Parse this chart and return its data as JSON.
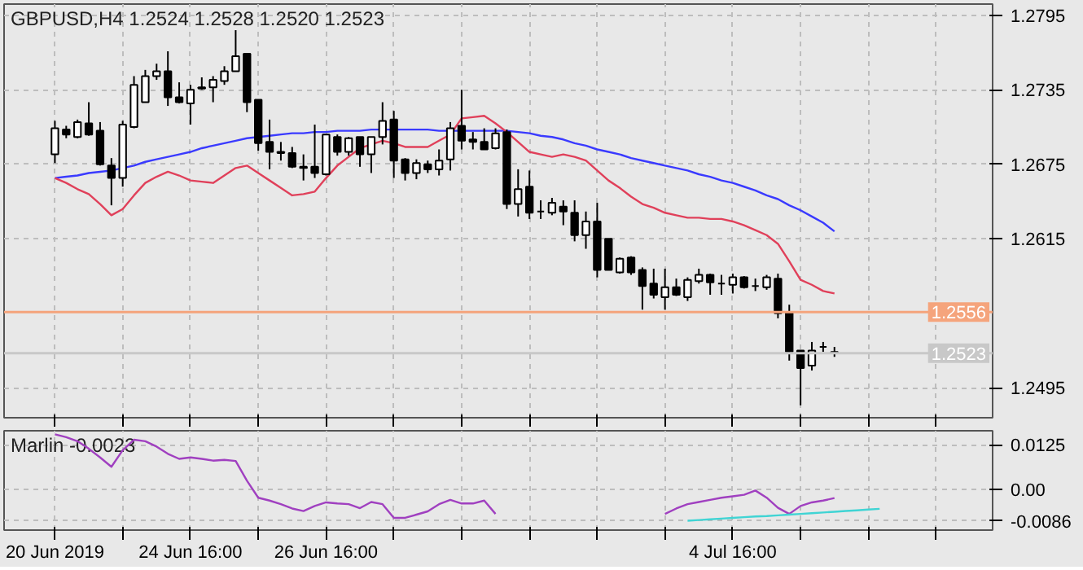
{
  "chart_data": [
    {
      "type": "candlestick",
      "title": "GBPUSD,H4  1.2524 1.2528 1.2520 1.2523",
      "categories": [
        null,
        null,
        null,
        null,
        null,
        null,
        null,
        null,
        null,
        null,
        null,
        null,
        null,
        null,
        null,
        null,
        null,
        null,
        null,
        null,
        null,
        null,
        null,
        null,
        null,
        null,
        null,
        null,
        null,
        null,
        null,
        null,
        null,
        null,
        null,
        null,
        null,
        null,
        null,
        null,
        null,
        null,
        null,
        null,
        null,
        null,
        null,
        null,
        null,
        null,
        null,
        null,
        null,
        null,
        null,
        null,
        null,
        null,
        null,
        null,
        null,
        null,
        null,
        null,
        null,
        null,
        null,
        null,
        null,
        null,
        null,
        null,
        null,
        null,
        null,
        null,
        null,
        null,
        null,
        null,
        null,
        null,
        null,
        null
      ],
      "ohlc": [
        [
          1.2683,
          1.271,
          1.2676,
          1.2704
        ],
        [
          1.2703,
          1.2706,
          1.2696,
          1.2699
        ],
        [
          1.2697,
          1.2711,
          1.2696,
          1.2709
        ],
        [
          1.2708,
          1.2725,
          1.2698,
          1.2699
        ],
        [
          1.2702,
          1.2709,
          1.2674,
          1.2675
        ],
        [
          1.2674,
          1.268,
          1.2642,
          1.2664
        ],
        [
          1.2664,
          1.271,
          1.2657,
          1.2707
        ],
        [
          1.2705,
          1.2746,
          1.2704,
          1.2739
        ],
        [
          1.2725,
          1.2751,
          1.2725,
          1.2746
        ],
        [
          1.2746,
          1.2756,
          1.2743,
          1.275
        ],
        [
          1.275,
          1.2766,
          1.2722,
          1.2729
        ],
        [
          1.2729,
          1.2741,
          1.2724,
          1.2725
        ],
        [
          1.2724,
          1.2739,
          1.2707,
          1.2735
        ],
        [
          1.2737,
          1.2745,
          1.2735,
          1.2736
        ],
        [
          1.2737,
          1.2746,
          1.2725,
          1.2743
        ],
        [
          1.2742,
          1.2754,
          1.2739,
          1.275
        ],
        [
          1.275,
          1.2783,
          1.275,
          1.2762
        ],
        [
          1.2764,
          1.2764,
          1.2717,
          1.2725
        ],
        [
          1.2727,
          1.2727,
          1.2686,
          1.2692
        ],
        [
          1.2693,
          1.2711,
          1.2671,
          1.2685
        ],
        [
          1.2685,
          1.2693,
          1.2678,
          1.2684
        ],
        [
          1.2684,
          1.2689,
          1.2672,
          1.2673
        ],
        [
          1.2673,
          1.2683,
          1.2662,
          1.2672
        ],
        [
          1.2673,
          1.2707,
          1.2664,
          1.2668
        ],
        [
          1.2667,
          1.2699,
          1.2666,
          1.2699
        ],
        [
          1.2697,
          1.2699,
          1.2682,
          1.2685
        ],
        [
          1.2685,
          1.2697,
          1.2682,
          1.2696
        ],
        [
          1.2697,
          1.2697,
          1.2673,
          1.2683
        ],
        [
          1.2683,
          1.2697,
          1.2668,
          1.2697
        ],
        [
          1.2697,
          1.2725,
          1.2691,
          1.271
        ],
        [
          1.2711,
          1.2718,
          1.2664,
          1.2678
        ],
        [
          1.2679,
          1.268,
          1.2662,
          1.2668
        ],
        [
          1.2668,
          1.2679,
          1.2663,
          1.2676
        ],
        [
          1.2675,
          1.2678,
          1.2668,
          1.2671
        ],
        [
          1.2671,
          1.2687,
          1.2666,
          1.2678
        ],
        [
          1.2679,
          1.2709,
          1.267,
          1.2704
        ],
        [
          1.2706,
          1.2735,
          1.2687,
          1.2694
        ],
        [
          1.2695,
          1.2701,
          1.2687,
          1.2693
        ],
        [
          1.2693,
          1.2704,
          1.2687,
          1.2687
        ],
        [
          1.2688,
          1.2704,
          1.2687,
          1.27
        ],
        [
          1.2701,
          1.2703,
          1.2639,
          1.2643
        ],
        [
          1.2643,
          1.2671,
          1.2633,
          1.2655
        ],
        [
          1.2657,
          1.267,
          1.2631,
          1.2636
        ],
        [
          1.2637,
          1.2646,
          1.2631,
          1.2637
        ],
        [
          1.2636,
          1.2648,
          1.2634,
          1.2644
        ],
        [
          1.2641,
          1.2646,
          1.2626,
          1.2637
        ],
        [
          1.2636,
          1.2646,
          1.2613,
          1.2618
        ],
        [
          1.2618,
          1.2637,
          1.2607,
          1.2629
        ],
        [
          1.2629,
          1.2644,
          1.2584,
          1.259
        ],
        [
          1.2615,
          1.2615,
          1.259,
          1.259
        ],
        [
          1.2588,
          1.26,
          1.2587,
          1.2599
        ],
        [
          1.26,
          1.2601,
          1.2586,
          1.2588
        ],
        [
          1.259,
          1.2592,
          1.2558,
          1.2577
        ],
        [
          1.2579,
          1.2591,
          1.2567,
          1.257
        ],
        [
          1.2568,
          1.2591,
          1.2558,
          1.2576
        ],
        [
          1.2576,
          1.2583,
          1.2569,
          1.257
        ],
        [
          1.2568,
          1.2584,
          1.2565,
          1.2582
        ],
        [
          1.2581,
          1.2591,
          1.2579,
          1.2586
        ],
        [
          1.2586,
          1.2587,
          1.257,
          1.258
        ],
        [
          1.2579,
          1.2586,
          1.257,
          1.2579
        ],
        [
          1.2578,
          1.2587,
          1.2571,
          1.2584
        ],
        [
          1.2584,
          1.2585,
          1.2575,
          1.2576
        ],
        [
          1.2577,
          1.2583,
          1.2573,
          1.2577
        ],
        [
          1.2576,
          1.2586,
          1.2574,
          1.2584
        ],
        [
          1.2583,
          1.2587,
          1.2551,
          1.2555
        ],
        [
          1.2556,
          1.2562,
          1.2517,
          1.2524
        ],
        [
          1.2525,
          1.2525,
          1.2481,
          1.2511
        ],
        [
          1.2513,
          1.2532,
          1.2509,
          1.2525
        ],
        [
          1.2528,
          1.2532,
          1.2524,
          1.2528
        ],
        [
          1.2524,
          1.2528,
          1.252,
          1.2523
        ],
        null,
        null,
        null,
        null,
        null,
        null,
        null,
        null,
        null,
        null,
        null,
        null,
        null,
        null
      ],
      "series": [
        {
          "type": "line",
          "color": "#3a3aff",
          "values": [
            1.2664,
            1.2665,
            1.2666,
            1.2668,
            1.2669,
            1.267,
            1.2672,
            1.2674,
            1.2677,
            1.2679,
            1.2681,
            1.2683,
            1.2685,
            1.2688,
            1.269,
            1.2692,
            1.2694,
            1.2696,
            1.2697,
            1.2698,
            1.2699,
            1.27,
            1.27,
            1.2701,
            1.2701,
            1.2702,
            1.2702,
            1.2702,
            1.2703,
            1.2703,
            1.2703,
            1.2703,
            1.2703,
            1.2703,
            1.2702,
            1.2702,
            1.2702,
            1.2702,
            1.2702,
            1.2702,
            1.2702,
            1.2701,
            1.27,
            1.2698,
            1.2697,
            1.2695,
            1.2692,
            1.269,
            1.2687,
            1.2685,
            1.2683,
            1.268,
            1.2678,
            1.2676,
            1.2674,
            1.2672,
            1.267,
            1.2667,
            1.2665,
            1.2662,
            1.266,
            1.2657,
            1.2654,
            1.265,
            1.2647,
            1.2642,
            1.2638,
            1.2633,
            1.2628,
            1.2621,
            null,
            null,
            null,
            null,
            null,
            null,
            null,
            null,
            null,
            null,
            null,
            null,
            null,
            null
          ]
        },
        {
          "type": "line",
          "color": "#e0405a",
          "values": [
            1.2664,
            1.266,
            1.2655,
            1.2651,
            1.2643,
            1.2634,
            1.2639,
            1.265,
            1.266,
            1.2665,
            1.2669,
            1.2666,
            1.2662,
            1.2661,
            1.266,
            1.2666,
            1.2672,
            1.2674,
            1.2668,
            1.2662,
            1.2656,
            1.265,
            1.2651,
            1.2653,
            1.2664,
            1.2674,
            1.2681,
            1.2688,
            1.2691,
            1.2694,
            1.2692,
            1.2689,
            1.2689,
            1.2689,
            1.2694,
            1.2699,
            1.2712,
            1.2713,
            1.2714,
            1.2708,
            1.2701,
            1.2693,
            1.2685,
            1.2683,
            1.2681,
            1.2683,
            1.2681,
            1.2678,
            1.267,
            1.2662,
            1.2656,
            1.2649,
            1.2643,
            1.264,
            1.2636,
            1.2634,
            1.2632,
            1.2632,
            1.2631,
            1.2631,
            1.2629,
            1.2626,
            1.2622,
            1.2618,
            1.2611,
            1.2597,
            1.2582,
            1.2578,
            1.2573,
            1.2571,
            null,
            null,
            null,
            null,
            null,
            null,
            null,
            null,
            null,
            null,
            null,
            null,
            null,
            null
          ]
        }
      ],
      "ylim": [
        1.2471,
        1.2804
      ],
      "yticks": [
        1.2495,
        1.2615,
        1.2675,
        1.2735,
        1.2795
      ],
      "ref_lines": [
        {
          "axis": "y",
          "value": 1.2556,
          "label": "1.2556",
          "color": "#f5a47c"
        },
        {
          "axis": "y",
          "value": 1.2523,
          "label": "1.2523",
          "color": "#c8c8c8"
        }
      ],
      "grid": true,
      "tick_labels": "y"
    },
    {
      "type": "line",
      "title": "Marlin -0.0023",
      "categories": [
        "20 Jun 2019",
        null,
        null,
        null,
        null,
        null,
        null,
        null,
        null,
        null,
        null,
        null,
        "24 Jun 16:00",
        null,
        null,
        null,
        null,
        null,
        null,
        null,
        null,
        null,
        null,
        null,
        "26 Jun 16:00",
        null,
        null,
        null,
        null,
        null,
        null,
        null,
        null,
        null,
        null,
        null,
        null,
        null,
        null,
        null,
        null,
        null,
        null,
        null,
        null,
        null,
        null,
        null,
        null,
        null,
        null,
        null,
        null,
        null,
        null,
        null,
        null,
        null,
        null,
        null,
        "4 Jul 16:00",
        null,
        null,
        null,
        null,
        null,
        null,
        null,
        null,
        null,
        null,
        null,
        null,
        null,
        null,
        null,
        null,
        null,
        null,
        null,
        null,
        null,
        null,
        null
      ],
      "series": [
        {
          "color": "#a040c0",
          "values": [
            0.0154,
            0.0146,
            0.0135,
            0.0114,
            0.009,
            0.0064,
            0.011,
            0.0139,
            0.0135,
            0.012,
            0.01,
            0.0086,
            0.009,
            0.0086,
            0.0081,
            0.0083,
            0.008,
            0.0025,
            -0.0022,
            -0.003,
            -0.004,
            -0.0052,
            -0.0059,
            -0.0045,
            -0.0035,
            -0.0038,
            -0.004,
            -0.0051,
            -0.0034,
            -0.004,
            -0.0078,
            -0.0078,
            -0.0069,
            -0.006,
            -0.004,
            -0.0028,
            -0.0038,
            -0.0038,
            -0.003,
            -0.0067,
            null,
            null,
            null,
            null,
            null,
            null,
            null,
            null,
            null,
            null,
            null,
            null,
            null,
            null,
            -0.0067,
            -0.0052,
            -0.004,
            -0.0034,
            -0.0028,
            -0.0022,
            -0.0018,
            -0.0014,
            -0.0002,
            -0.0022,
            -0.005,
            -0.0067,
            -0.0045,
            -0.0035,
            -0.003,
            -0.0023,
            null,
            null,
            null,
            null,
            null,
            null,
            null,
            null,
            null,
            null,
            null,
            null,
            null,
            null
          ]
        },
        {
          "color": "#40d4d4",
          "values": [
            null,
            null,
            null,
            null,
            null,
            null,
            null,
            null,
            null,
            null,
            null,
            null,
            null,
            null,
            null,
            null,
            null,
            null,
            null,
            null,
            null,
            null,
            null,
            null,
            null,
            null,
            null,
            null,
            null,
            null,
            null,
            null,
            null,
            null,
            null,
            null,
            null,
            null,
            null,
            null,
            null,
            null,
            null,
            null,
            null,
            null,
            null,
            null,
            null,
            null,
            null,
            null,
            null,
            null,
            null,
            null,
            -0.0086,
            -0.0084,
            -0.0082,
            -0.008,
            -0.0078,
            -0.0076,
            -0.0074,
            -0.0073,
            -0.0071,
            -0.0069,
            -0.0067,
            -0.0065,
            -0.0063,
            -0.0061,
            -0.0059,
            -0.0057,
            -0.0055,
            -0.0053,
            null,
            null,
            null,
            null,
            null,
            null,
            null,
            null,
            null,
            null
          ]
        }
      ],
      "ylim": [
        -0.0112,
        0.0164
      ],
      "yticks": [
        -0.0086,
        {
          "value": 0,
          "label": "0.00"
        },
        0.0125
      ],
      "grid": true
    }
  ]
}
